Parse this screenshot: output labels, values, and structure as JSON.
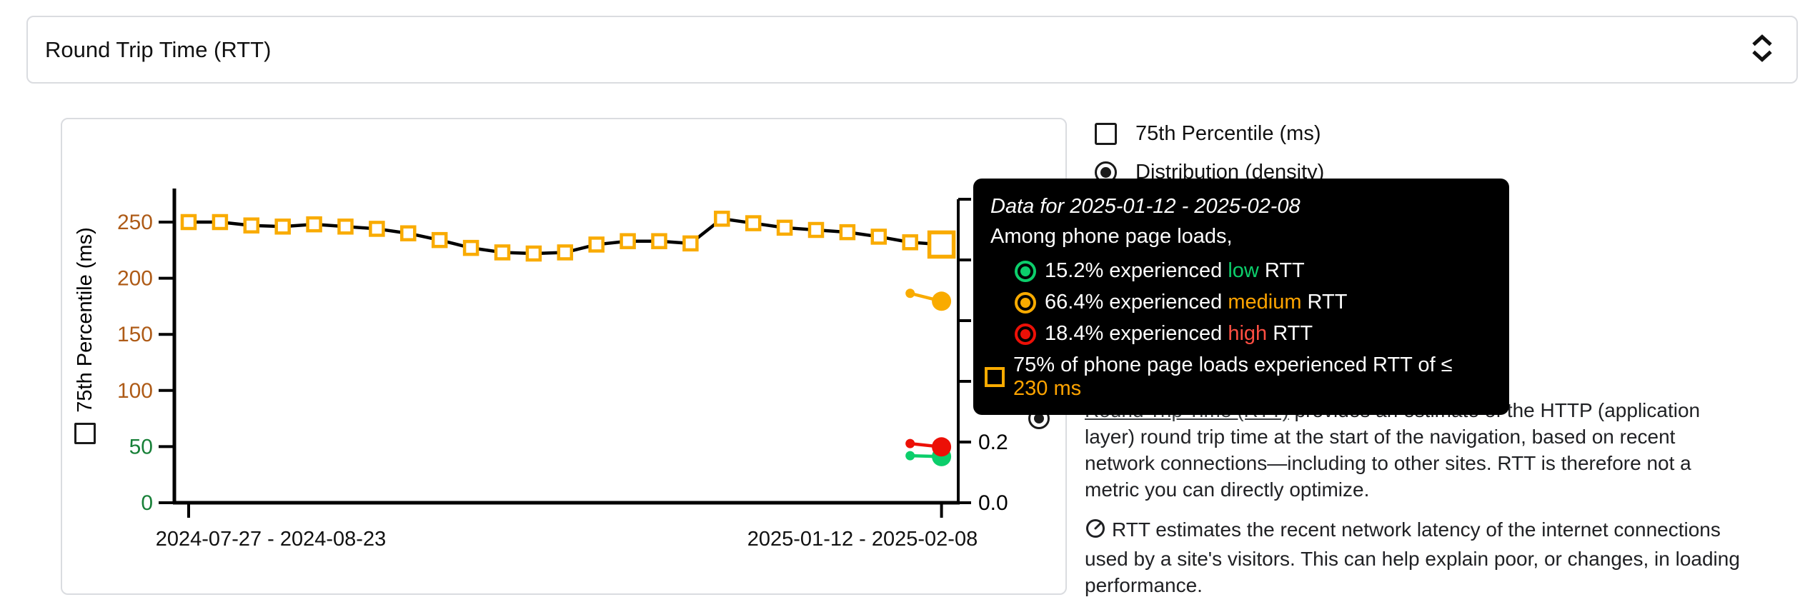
{
  "select_control": {
    "value": "Round Trip Time (RTT)"
  },
  "legend": {
    "items": [
      {
        "label": "75th Percentile (ms)",
        "control": "checkbox",
        "checked": false
      },
      {
        "label": "Distribution (density)",
        "control": "radio",
        "checked": true
      }
    ]
  },
  "tooltip": {
    "title": "Data for 2025-01-12 - 2025-02-08",
    "subtitle": "Among phone page loads,",
    "rows": [
      {
        "marker": "ring",
        "marker_color": "#0CCE6B",
        "prefix": "15.2% experienced ",
        "highlight": "low",
        "highlight_color": "#0CCE6B",
        "suffix": " RTT",
        "indent": true
      },
      {
        "marker": "ring",
        "marker_color": "#F9AB00",
        "prefix": "66.4% experienced ",
        "highlight": "medium",
        "highlight_color": "#FFA400",
        "suffix": " RTT",
        "indent": true
      },
      {
        "marker": "ring",
        "marker_color": "#EC1007",
        "prefix": "18.4% experienced ",
        "highlight": "high",
        "highlight_color": "#FF4E42",
        "suffix": " RTT",
        "indent": true
      },
      {
        "marker": "square",
        "marker_color": "#F9AB00",
        "prefix": "75% of phone page loads experienced RTT of ≤ ",
        "highlight": "230 ms",
        "highlight_color": "#FFA400",
        "suffix": "",
        "indent": false
      }
    ]
  },
  "description": {
    "p1_link": "Round Trip Time (RTT)",
    "p1_rest": " provides an estimate of the HTTP (application layer) round trip time at the start of the navigation, based on recent network connections—including to other sites. RTT is therefore not a metric you can directly optimize.",
    "p2": "RTT estimates the recent network latency of the internet connections used by a site's visitors. This can help explain poor, or changes, in loading performance."
  },
  "chart_data": {
    "type": "line",
    "x_tick_labels": [
      "2024-07-27 - 2024-08-23",
      "2025-01-12 - 2025-02-08"
    ],
    "left_axis": {
      "title": "75th Percentile (ms)",
      "range": [
        0,
        280
      ],
      "ticks": [
        {
          "value": 0,
          "color": "#188038"
        },
        {
          "value": 50,
          "color": "#188038"
        },
        {
          "value": 100,
          "color": "#AE5B17"
        },
        {
          "value": 150,
          "color": "#AE5B17"
        },
        {
          "value": 200,
          "color": "#AE5B17"
        },
        {
          "value": 250,
          "color": "#AE5B17"
        }
      ]
    },
    "right_axis": {
      "title": "Distribution (density)",
      "range": [
        0,
        1.0
      ],
      "tick_step": 0.2,
      "visible_tick_labels": [
        {
          "value": 0.2,
          "text": "0.2"
        },
        {
          "value": 0.0,
          "text": "0.0"
        }
      ]
    },
    "percentile_series": {
      "name": "75th Percentile (ms)",
      "marker": "open-square",
      "marker_color": "#F9AB00",
      "line_color": "#000000",
      "values_ms": [
        250,
        250,
        247,
        246,
        248,
        246,
        244,
        240,
        234,
        227,
        223,
        222,
        223,
        230,
        233,
        233,
        231,
        253,
        249,
        245,
        243,
        241,
        237,
        232,
        230
      ],
      "selected_index": 24,
      "selected_value_ms": 230
    },
    "density_series": [
      {
        "name": "low",
        "color": "#0CCE6B",
        "points_pct": [
          15.5,
          15.2
        ]
      },
      {
        "name": "medium",
        "color": "#F9AB00",
        "points_pct": [
          69.0,
          66.4
        ]
      },
      {
        "name": "high",
        "color": "#EC1007",
        "points_pct": [
          19.5,
          18.4
        ]
      }
    ],
    "density_points_periods": "last two collection periods"
  }
}
